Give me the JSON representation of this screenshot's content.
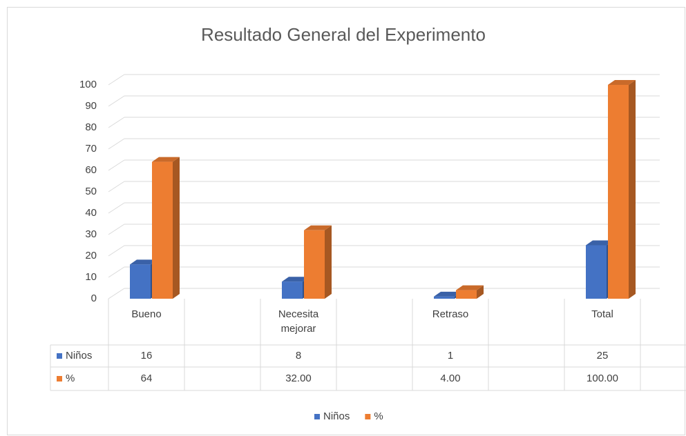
{
  "chart_data": {
    "type": "bar3d",
    "title": "Resultado General del Experimento",
    "categories": [
      "Bueno",
      "Necesita mejorar",
      "Retraso",
      "Total"
    ],
    "series": [
      {
        "name": "Niños",
        "color": "#4472c4",
        "values": [
          16,
          8,
          1,
          25
        ]
      },
      {
        "name": "%",
        "color": "#ed7d31",
        "values": [
          64,
          32,
          4,
          100
        ],
        "value_labels": [
          "64",
          "32.00",
          "4.00",
          "100.00"
        ]
      }
    ],
    "ylim": [
      0,
      100
    ],
    "yticks": [
      0,
      10,
      20,
      30,
      40,
      50,
      60,
      70,
      80,
      90,
      100
    ],
    "grid": true,
    "legend": "bottom",
    "data_table": true
  }
}
